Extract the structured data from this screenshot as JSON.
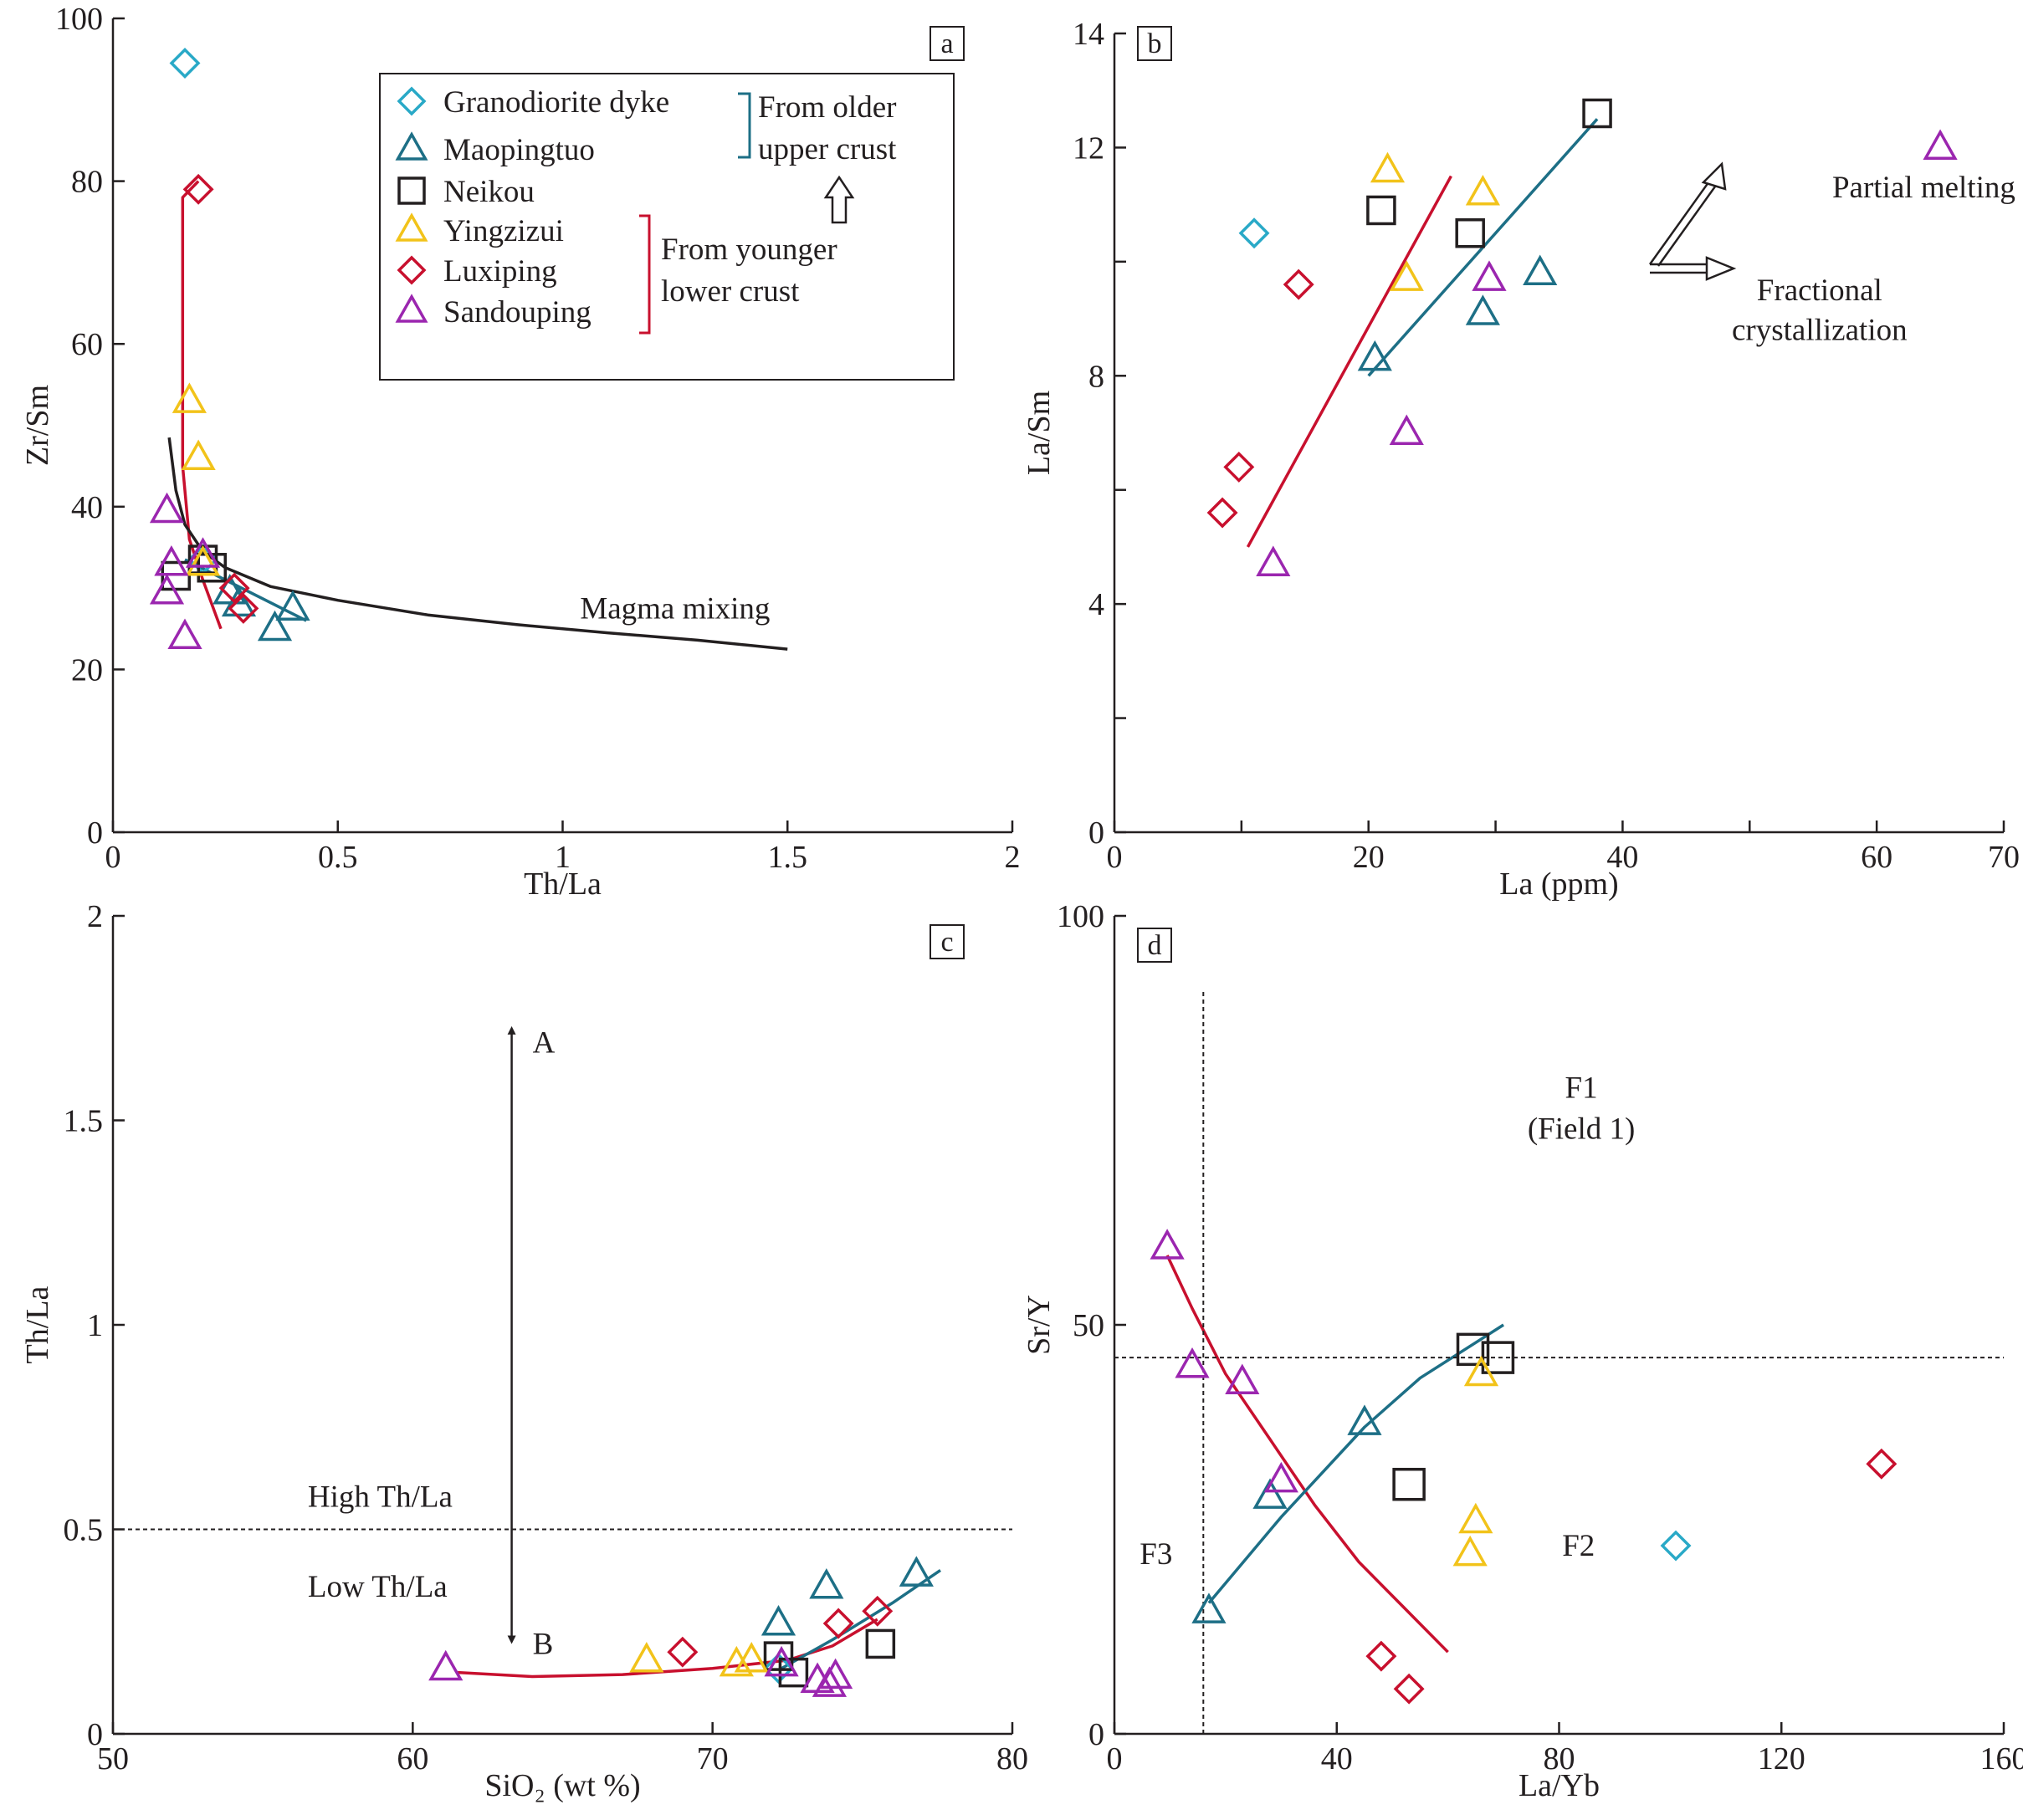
{
  "colors": {
    "granodiorite": "#29a9c7",
    "maopingtuo": "#1d6f86",
    "neikou": "#231f20",
    "yingzizui": "#f2c31a",
    "luxiping": "#c8102e",
    "sandouping": "#9b26af",
    "mixing": "#231f20"
  },
  "legend": {
    "items": [
      {
        "key": "granodiorite",
        "marker": "diamond",
        "label": "Granodiorite dyke"
      },
      {
        "key": "maopingtuo",
        "marker": "triangle",
        "label": "Maopingtuo"
      },
      {
        "key": "neikou",
        "marker": "square",
        "label": "Neikou"
      },
      {
        "key": "yingzizui",
        "marker": "triangle",
        "label": "Yingzizui"
      },
      {
        "key": "luxiping",
        "marker": "diamond",
        "label": "Luxiping"
      },
      {
        "key": "sandouping",
        "marker": "triangle",
        "label": "Sandouping"
      }
    ],
    "group_older": [
      "From older",
      "upper crust"
    ],
    "group_younger": [
      "From younger",
      "lower crust"
    ]
  },
  "chart_data": [
    {
      "id": "a",
      "panel_label": "a",
      "type": "scatter",
      "xlabel": "Th/La",
      "ylabel": "Zr/Sm",
      "xlim": [
        0,
        2
      ],
      "ylim": [
        0,
        100
      ],
      "xticks": [
        0,
        0.5,
        1,
        1.5,
        2
      ],
      "xtick_labels": [
        "0",
        "0.5",
        "1",
        "1.5",
        "2"
      ],
      "yticks": [
        0,
        20,
        40,
        60,
        80,
        100
      ],
      "ytick_labels": [
        "0",
        "20",
        "40",
        "60",
        "80",
        "100"
      ],
      "series": [
        {
          "key": "granodiorite",
          "marker": "diamond",
          "points": [
            [
              0.16,
              94.5
            ],
            [
              0.2,
              33.5
            ]
          ]
        },
        {
          "key": "maopingtuo",
          "marker": "triangle",
          "points": [
            [
              0.28,
              28
            ],
            [
              0.36,
              25
            ],
            [
              0.4,
              27.5
            ],
            [
              0.26,
              29.5
            ]
          ]
        },
        {
          "key": "neikou",
          "marker": "square",
          "points": [
            [
              0.14,
              31.5
            ],
            [
              0.2,
              33.5
            ],
            [
              0.22,
              32.5
            ]
          ]
        },
        {
          "key": "yingzizui",
          "marker": "triangle",
          "points": [
            [
              0.17,
              53
            ],
            [
              0.19,
              46
            ],
            [
              0.2,
              33
            ]
          ]
        },
        {
          "key": "luxiping",
          "marker": "diamond",
          "points": [
            [
              0.19,
              79
            ],
            [
              0.27,
              30
            ],
            [
              0.29,
              27.5
            ]
          ]
        },
        {
          "key": "sandouping",
          "marker": "triangle",
          "points": [
            [
              0.12,
              29.5
            ],
            [
              0.13,
              33
            ],
            [
              0.12,
              39.5
            ],
            [
              0.16,
              24
            ],
            [
              0.2,
              34
            ]
          ]
        }
      ],
      "lines": [
        {
          "key": "luxiping",
          "points": [
            [
              0.24,
              25
            ],
            [
              0.2,
              31
            ],
            [
              0.17,
              36
            ],
            [
              0.155,
              45
            ],
            [
              0.155,
              60
            ],
            [
              0.155,
              78
            ],
            [
              0.19,
              80
            ]
          ]
        },
        {
          "key": "maopingtuo",
          "points": [
            [
              0.16,
              33.5
            ],
            [
              0.43,
              26
            ]
          ]
        },
        {
          "key": "mixing",
          "points": [
            [
              0.125,
              48.5
            ],
            [
              0.14,
              42
            ],
            [
              0.16,
              37.8
            ],
            [
              0.2,
              34.5
            ],
            [
              0.25,
              32.5
            ],
            [
              0.35,
              30.2
            ],
            [
              0.5,
              28.5
            ],
            [
              0.7,
              26.7
            ],
            [
              0.9,
              25.5
            ],
            [
              1.1,
              24.5
            ],
            [
              1.3,
              23.6
            ],
            [
              1.5,
              22.5
            ]
          ]
        }
      ],
      "annotations": [
        {
          "text": "Magma mixing",
          "x": 1.25,
          "y": 27.5
        }
      ]
    },
    {
      "id": "b",
      "panel_label": "b",
      "type": "scatter",
      "xlabel": "La (ppm)",
      "ylabel": "La/Sm",
      "xlim": [
        0,
        70
      ],
      "ylim": [
        0,
        14
      ],
      "xticks": [
        0,
        10,
        20,
        30,
        40,
        50,
        60,
        70
      ],
      "xtick_labels": [
        "0",
        "",
        "20",
        "",
        "40",
        "",
        "60",
        "70"
      ],
      "yticks": [
        0,
        2,
        4,
        6,
        8,
        10,
        12,
        14
      ],
      "ytick_labels": [
        "0",
        "",
        "4",
        "",
        "8",
        "",
        "12",
        "14"
      ],
      "series": [
        {
          "key": "granodiorite",
          "marker": "diamond",
          "points": [
            [
              11,
              10.5
            ]
          ]
        },
        {
          "key": "maopingtuo",
          "marker": "triangle",
          "points": [
            [
              20.5,
              8.3
            ],
            [
              29,
              9.1
            ],
            [
              33.5,
              9.8
            ]
          ]
        },
        {
          "key": "neikou",
          "marker": "square",
          "points": [
            [
              21,
              10.9
            ],
            [
              28,
              10.5
            ],
            [
              38,
              12.6
            ]
          ]
        },
        {
          "key": "yingzizui",
          "marker": "triangle",
          "points": [
            [
              21.5,
              11.6
            ],
            [
              23,
              9.7
            ],
            [
              29,
              11.2
            ]
          ]
        },
        {
          "key": "luxiping",
          "marker": "diamond",
          "points": [
            [
              8.5,
              5.6
            ],
            [
              9.8,
              6.4
            ],
            [
              14.5,
              9.6
            ]
          ]
        },
        {
          "key": "sandouping",
          "marker": "triangle",
          "points": [
            [
              12.5,
              4.7
            ],
            [
              23,
              7
            ],
            [
              29.5,
              9.7
            ],
            [
              65,
              12
            ]
          ]
        }
      ],
      "lines": [
        {
          "key": "luxiping",
          "points": [
            [
              10.5,
              5
            ],
            [
              26.5,
              11.5
            ]
          ]
        },
        {
          "key": "maopingtuo",
          "points": [
            [
              20,
              8
            ],
            [
              38,
              12.5
            ]
          ]
        }
      ],
      "annotations": [
        {
          "text": "Partial melting",
          "x": 56.5,
          "y": 11.3
        },
        {
          "text": "Fractional",
          "x": 55.5,
          "y": 9.5
        },
        {
          "text": "crystallization",
          "x": 55.5,
          "y": 8.8
        }
      ]
    },
    {
      "id": "c",
      "panel_label": "c",
      "type": "scatter",
      "xlabel": "SiO₂ (wt %)",
      "ylabel": "Th/La",
      "xlim": [
        50,
        80
      ],
      "ylim": [
        0,
        2
      ],
      "xticks": [
        50,
        60,
        70,
        80
      ],
      "xtick_labels": [
        "50",
        "60",
        "70",
        "80"
      ],
      "yticks": [
        0,
        0.5,
        1,
        1.5,
        2
      ],
      "ytick_labels": [
        "0",
        "0.5",
        "1",
        "1.5",
        "2"
      ],
      "series": [
        {
          "key": "granodiorite",
          "marker": "diamond",
          "points": [
            [
              72.2,
              0.16
            ]
          ]
        },
        {
          "key": "maopingtuo",
          "marker": "triangle",
          "points": [
            [
              72.2,
              0.27
            ],
            [
              73.8,
              0.36
            ],
            [
              76.8,
              0.39
            ]
          ]
        },
        {
          "key": "neikou",
          "marker": "square",
          "points": [
            [
              72.2,
              0.19
            ],
            [
              72.7,
              0.15
            ],
            [
              75.6,
              0.22
            ]
          ]
        },
        {
          "key": "yingzizui",
          "marker": "triangle",
          "points": [
            [
              67.8,
              0.18
            ],
            [
              70.8,
              0.17
            ],
            [
              71.3,
              0.18
            ]
          ]
        },
        {
          "key": "luxiping",
          "marker": "diamond",
          "points": [
            [
              69,
              0.2
            ],
            [
              74.2,
              0.27
            ],
            [
              75.5,
              0.3
            ]
          ]
        },
        {
          "key": "sandouping",
          "marker": "triangle",
          "points": [
            [
              61.1,
              0.16
            ],
            [
              73.5,
              0.13
            ],
            [
              73.9,
              0.12
            ],
            [
              74.1,
              0.14
            ],
            [
              72.3,
              0.17
            ]
          ]
        }
      ],
      "lines": [
        {
          "key": "luxiping",
          "points": [
            [
              61.5,
              0.15
            ],
            [
              64,
              0.14
            ],
            [
              67,
              0.145
            ],
            [
              70,
              0.16
            ],
            [
              72.5,
              0.18
            ],
            [
              74,
              0.215
            ],
            [
              75.5,
              0.28
            ]
          ]
        },
        {
          "key": "maopingtuo",
          "points": [
            [
              72.3,
              0.16
            ],
            [
              74,
              0.23
            ],
            [
              76,
              0.32
            ],
            [
              77.6,
              0.4
            ]
          ]
        },
        {
          "key": "mixing",
          "dashed": true,
          "points": [
            [
              50,
              0.5
            ],
            [
              80,
              0.5
            ]
          ]
        }
      ],
      "arrow": {
        "x": 63.3,
        "y_top": 1.72,
        "y_bottom": 0.23
      },
      "annotations": [
        {
          "text": "A",
          "x": 64,
          "y": 1.69
        },
        {
          "text": "B",
          "x": 64,
          "y": 0.22
        },
        {
          "text": "High Th/La",
          "x": 56.5,
          "y": 0.58
        },
        {
          "text": "Low Th/La",
          "x": 56.5,
          "y": 0.36
        }
      ]
    },
    {
      "id": "d",
      "panel_label": "d",
      "type": "scatter",
      "xlabel": "La/Yb",
      "ylabel": "Sr/Y",
      "xlim": [
        0,
        160
      ],
      "ylim": [
        0,
        100
      ],
      "xticks": [
        0,
        40,
        80,
        120,
        160
      ],
      "xtick_labels": [
        "0",
        "40",
        "80",
        "120",
        "160"
      ],
      "yticks": [
        0,
        50,
        100
      ],
      "ytick_labels": [
        "0",
        "50",
        "100"
      ],
      "series": [
        {
          "key": "granodiorite",
          "marker": "diamond",
          "points": [
            [
              101,
              23
            ]
          ]
        },
        {
          "key": "maopingtuo",
          "marker": "triangle",
          "points": [
            [
              17,
              15
            ],
            [
              28,
              29
            ],
            [
              45,
              38
            ]
          ]
        },
        {
          "key": "neikou",
          "marker": "square",
          "points": [
            [
              53,
              30.5
            ],
            [
              64.5,
              47
            ],
            [
              69,
              46
            ]
          ]
        },
        {
          "key": "yingzizui",
          "marker": "triangle",
          "points": [
            [
              64,
              22
            ],
            [
              65,
              26
            ],
            [
              66,
              44
            ]
          ]
        },
        {
          "key": "luxiping",
          "marker": "diamond",
          "points": [
            [
              48,
              9.5
            ],
            [
              53,
              5.5
            ],
            [
              138,
              33
            ]
          ]
        },
        {
          "key": "sandouping",
          "marker": "triangle",
          "points": [
            [
              9.5,
              59.5
            ],
            [
              14,
              45
            ],
            [
              23,
              43
            ],
            [
              30,
              31
            ]
          ]
        }
      ],
      "lines": [
        {
          "key": "luxiping",
          "points": [
            [
              9.5,
              58.5
            ],
            [
              14,
              52
            ],
            [
              20,
              44
            ],
            [
              28,
              36
            ],
            [
              36,
              28
            ],
            [
              44,
              21
            ],
            [
              52,
              15.5
            ],
            [
              60,
              10
            ]
          ]
        },
        {
          "key": "maopingtuo",
          "points": [
            [
              17,
              16
            ],
            [
              30,
              26.5
            ],
            [
              45,
              37.5
            ],
            [
              55,
              43.5
            ],
            [
              70,
              50
            ]
          ]
        },
        {
          "key": "mixing",
          "dashed": true,
          "points": [
            [
              0,
              46
            ],
            [
              160,
              46
            ]
          ]
        },
        {
          "key": "mixing",
          "dashed": true,
          "points": [
            [
              16,
              0
            ],
            [
              16,
              91
            ]
          ]
        }
      ],
      "annotations": [
        {
          "text": "F1",
          "x": 84,
          "y": 79
        },
        {
          "text": "(Field 1)",
          "x": 84,
          "y": 74
        },
        {
          "text": "F2",
          "x": 83.5,
          "y": 23
        },
        {
          "text": "F3",
          "x": 7.5,
          "y": 22
        }
      ]
    }
  ]
}
